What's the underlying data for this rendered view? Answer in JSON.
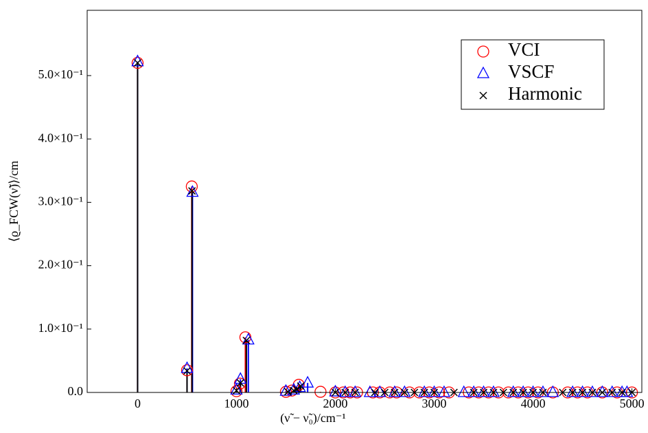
{
  "chart_data": {
    "type": "stem",
    "xlabel": "(ν̃ − ν̃₀)/cm⁻¹",
    "ylabel": "⟨ϱ_FCW(ν̃)⟩/cm",
    "xlim": [
      -510,
      5100
    ],
    "ylim": [
      0,
      0.603
    ],
    "xticks": [
      0,
      1000,
      2000,
      3000,
      4000,
      5000
    ],
    "yticks": [
      {
        "value": 0,
        "label": "0.0"
      },
      {
        "value": 0.1,
        "label": "1.0×10⁻¹"
      },
      {
        "value": 0.2,
        "label": "2.0×10⁻¹"
      },
      {
        "value": 0.3,
        "label": "3.0×10⁻¹"
      },
      {
        "value": 0.4,
        "label": "4.0×10⁻¹"
      },
      {
        "value": 0.5,
        "label": "5.0×10⁻¹"
      }
    ],
    "legend": "upper right",
    "series": [
      {
        "name": "VCI",
        "color": "#ff0000",
        "marker": "circle",
        "x": [
          0,
          500,
          548,
          1000,
          1035,
          1090,
          1500,
          1560,
          1630,
          1850,
          2000,
          2080,
          2150,
          2220,
          2380,
          2450,
          2550,
          2620,
          2750,
          2850,
          2950,
          3050,
          3150,
          3350,
          3450,
          3550,
          3650,
          3750,
          3850,
          3950,
          4050,
          4200,
          4350,
          4450,
          4550,
          4700,
          4850,
          5000
        ],
        "values": [
          0.52,
          0.035,
          0.325,
          0.002,
          0.014,
          0.087,
          0.001,
          0.003,
          0.012,
          0.001,
          0,
          0,
          0,
          0,
          0,
          0,
          0,
          0,
          0,
          0,
          0,
          0,
          0,
          0,
          0,
          0,
          0,
          0,
          0,
          0,
          0,
          0,
          0,
          0,
          0,
          0,
          0,
          0
        ]
      },
      {
        "name": "VSCF",
        "color": "#0000ff",
        "marker": "triangle",
        "x": [
          0,
          500,
          555,
          1000,
          1040,
          1120,
          1500,
          1580,
          1640,
          1720,
          2000,
          2100,
          2200,
          2350,
          2450,
          2600,
          2700,
          2900,
          3000,
          3100,
          3300,
          3400,
          3500,
          3600,
          3800,
          3900,
          4000,
          4100,
          4200,
          4400,
          4500,
          4600,
          4700,
          4800,
          4900,
          4950
        ],
        "values": [
          0.522,
          0.038,
          0.316,
          0.004,
          0.021,
          0.083,
          0.002,
          0.004,
          0.008,
          0.015,
          0.001,
          0,
          0,
          0,
          0,
          0,
          0,
          0,
          0,
          0,
          0,
          0,
          0,
          0,
          0,
          0,
          0,
          0,
          0,
          0,
          0,
          0,
          0,
          0,
          0,
          0
        ]
      },
      {
        "name": "Harmonic",
        "color": "#000000",
        "marker": "x",
        "x": [
          0,
          500,
          550,
          1000,
          1040,
          1100,
          1520,
          1580,
          1610,
          1650,
          2000,
          2100,
          2200,
          2400,
          2500,
          2600,
          2700,
          2800,
          2900,
          3000,
          3200,
          3400,
          3500,
          3600,
          3700,
          3800,
          3900,
          4000,
          4100,
          4300,
          4400,
          4500,
          4600,
          4700,
          4800,
          4900,
          5000
        ],
        "values": [
          0.52,
          0.034,
          0.318,
          0.003,
          0.015,
          0.082,
          0.001,
          0.003,
          0.005,
          0.01,
          0,
          0,
          0,
          0,
          0,
          0,
          0,
          0,
          0,
          0,
          0,
          0,
          0,
          0,
          0,
          0,
          0,
          0,
          0,
          0,
          0,
          0,
          0,
          0,
          0,
          0,
          0
        ]
      }
    ]
  }
}
